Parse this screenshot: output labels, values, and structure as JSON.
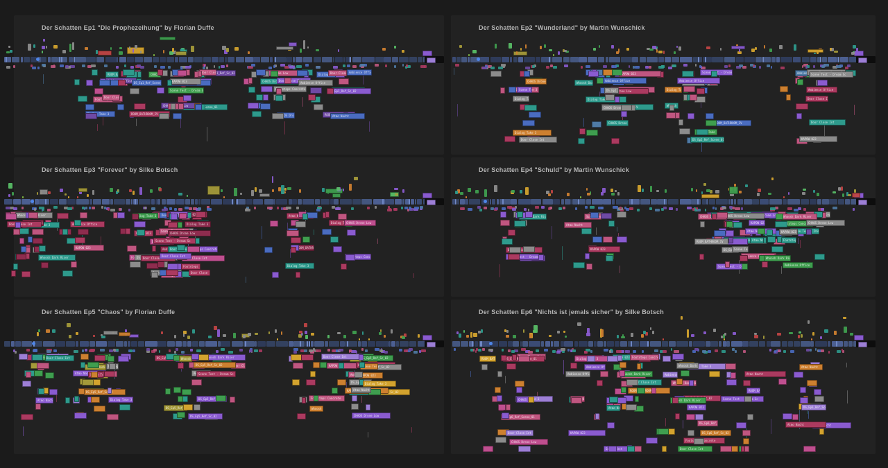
{
  "page": {
    "background": "#1b1b1b",
    "panel_background": "#222222",
    "title_color": "#b5b5b5"
  },
  "panels": [
    {
      "title": "Der Schatten Ep1 \"Die Prophezeihung\" by Florian Duffe",
      "seed": 11,
      "depth": 6,
      "clips": 120,
      "markers": 50,
      "ticks": 75,
      "lines": 10,
      "slope": 0,
      "weights": [
        [
          "teal",
          3
        ],
        [
          "pink",
          2.5
        ],
        [
          "rose",
          2
        ],
        [
          "gray",
          2
        ],
        [
          "purple",
          1.6
        ],
        [
          "blue",
          1.4
        ],
        [
          "green",
          1
        ],
        [
          "orange",
          0.8
        ],
        [
          "magenta",
          1
        ],
        [
          "violet",
          1
        ]
      ]
    },
    {
      "title": "Der Schatten Ep2 \"Wunderland\" by Martin Wunschick",
      "seed": 29,
      "depth": 9,
      "clips": 115,
      "markers": 55,
      "ticks": 70,
      "lines": 12,
      "slope": 0.1,
      "weights": [
        [
          "teal",
          2.6
        ],
        [
          "pink",
          2
        ],
        [
          "gray",
          2
        ],
        [
          "purple",
          2
        ],
        [
          "blue",
          1.5
        ],
        [
          "rose",
          1.5
        ],
        [
          "green",
          1
        ],
        [
          "orange",
          1
        ],
        [
          "steel",
          1
        ]
      ]
    },
    {
      "title": "Der Schatten Ep3 \"Forever\" by Silke Botsch",
      "seed": 47,
      "depth": 8,
      "clips": 160,
      "markers": 55,
      "ticks": 80,
      "lines": 14,
      "slope": 0,
      "weights": [
        [
          "pink",
          3
        ],
        [
          "rose",
          3
        ],
        [
          "crimson",
          2
        ],
        [
          "teal",
          2
        ],
        [
          "purple",
          2
        ],
        [
          "gray",
          1.5
        ],
        [
          "magenta",
          1.5
        ],
        [
          "green",
          0.8
        ],
        [
          "blue",
          1
        ]
      ]
    },
    {
      "title": "Der Schatten Ep4 \"Schuld\" by Martin Wunschick",
      "seed": 63,
      "depth": 7,
      "clips": 140,
      "markers": 60,
      "ticks": 75,
      "lines": 12,
      "slope": 0,
      "weights": [
        [
          "teal",
          3
        ],
        [
          "pink",
          2
        ],
        [
          "gray",
          2
        ],
        [
          "purple",
          2
        ],
        [
          "rose",
          1.6
        ],
        [
          "green",
          1.2
        ],
        [
          "blue",
          1
        ],
        [
          "violet",
          1.5
        ]
      ]
    },
    {
      "title": "Der Schatten Ep5 \"Chaos\" by Florian Duffe",
      "seed": 85,
      "depth": 8,
      "clips": 160,
      "markers": 55,
      "ticks": 80,
      "lines": 12,
      "slope": 0.05,
      "weights": [
        [
          "teal",
          2.5
        ],
        [
          "green",
          2
        ],
        [
          "orange",
          1.8
        ],
        [
          "purple",
          2
        ],
        [
          "pink",
          1.8
        ],
        [
          "gray",
          1.8
        ],
        [
          "olive",
          1.2
        ],
        [
          "amber",
          1.2
        ],
        [
          "rose",
          1.2
        ],
        [
          "lavender",
          1.2
        ]
      ]
    },
    {
      "title": "Der Schatten Ep6 \"Nichts ist jemals sicher\" by Silke Botsch",
      "seed": 97,
      "depth": 13,
      "clips": 165,
      "markers": 60,
      "ticks": 75,
      "lines": 14,
      "slope": 0.6,
      "weights": [
        [
          "purple",
          2.5
        ],
        [
          "lavender",
          2
        ],
        [
          "pink",
          2.2
        ],
        [
          "rose",
          2
        ],
        [
          "teal",
          1.8
        ],
        [
          "gray",
          1.5
        ],
        [
          "magenta",
          1.5
        ],
        [
          "orange",
          1.2
        ],
        [
          "green",
          1
        ],
        [
          "amber",
          1
        ]
      ]
    }
  ],
  "palette": {
    "teal": "#2e9a8c",
    "tealD": "#1f7a6e",
    "green": "#3f9e4f",
    "greenB": "#58bd66",
    "pink": "#c05680",
    "rose": "#ab3a60",
    "crimson": "#8e2c4e",
    "magenta": "#bf4f8f",
    "purple": "#8a5bd0",
    "violet": "#6f4aa5",
    "lavender": "#9d7fd6",
    "gray": "#8c8c8c",
    "grayD": "#595959",
    "blue": "#4a6cc0",
    "steel": "#4f7ba6",
    "orange": "#cd8030",
    "amber": "#d3a32e",
    "olive": "#a49a3a",
    "red": "#bf4545",
    "playhead": "#4f86e8",
    "band_end": "#0d0d0d"
  },
  "band_colors": [
    "#3b4b74",
    "#44567f",
    "#33415f",
    "#4c5f91",
    "#2e3a58",
    "#44567f"
  ],
  "band_accents": [
    "#d77f35",
    "#c9463f",
    "#7fb743",
    "#d8a92f"
  ],
  "marker_colors": [
    [
      "green",
      2
    ],
    [
      "olive",
      1.6
    ],
    [
      "amber",
      1.5
    ],
    [
      "orange",
      1.2
    ],
    [
      "gray",
      2
    ],
    [
      "purple",
      1.2
    ],
    [
      "red",
      0.8
    ],
    [
      "teal",
      1
    ],
    [
      "greenB",
      1
    ]
  ],
  "tick_colors": [
    "blue",
    "steel",
    "teal",
    "purple",
    "pink",
    "gray",
    "violet",
    "rose"
  ],
  "clip_labels": [
    "DS_Ep{n}_Ref_Scene_01",
    "DS_Ep{n}_Ref_Sc_02",
    "Ambience Office",
    "ROOM_BATHROOM_IV",
    "Scene Test - Dream Sc",
    "Footsteps Concrete",
    "Door Close Int",
    "Atmo Nacht",
    "Whoosh Dark Riser",
    "KAPOW 023",
    "Dialog Take 3",
    "CHAOS Drone Low"
  ]
}
